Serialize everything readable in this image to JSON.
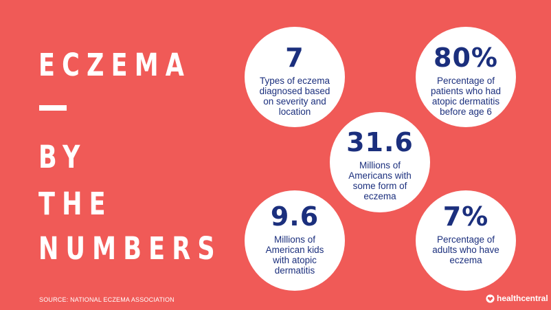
{
  "title": {
    "line1": "ECZEMA",
    "line2": "BY",
    "line3": "THE",
    "line4": "NUMBERS"
  },
  "stats": [
    {
      "value": "7",
      "description": "Types of eczema diagnosed based on severity and location"
    },
    {
      "value": "80%",
      "description": "Percentage of patients who had atopic dermatitis before age 6"
    },
    {
      "value": "31.6",
      "description": "Millions of Americans with some form of eczema"
    },
    {
      "value": "9.6",
      "description": "Millions of American kids with atopic dermatitis"
    },
    {
      "value": "7%",
      "description": "Percentage of adults who have eczema"
    }
  ],
  "source": "SOURCE: NATIONAL ECZEMA ASSOCIATION",
  "brand": {
    "name": "healthcentral",
    "icon": "healthcentral-logo-icon"
  },
  "colors": {
    "background": "#f05a57",
    "circle": "#ffffff",
    "stat_text": "#1b2f7d",
    "title_text": "#ffffff"
  }
}
